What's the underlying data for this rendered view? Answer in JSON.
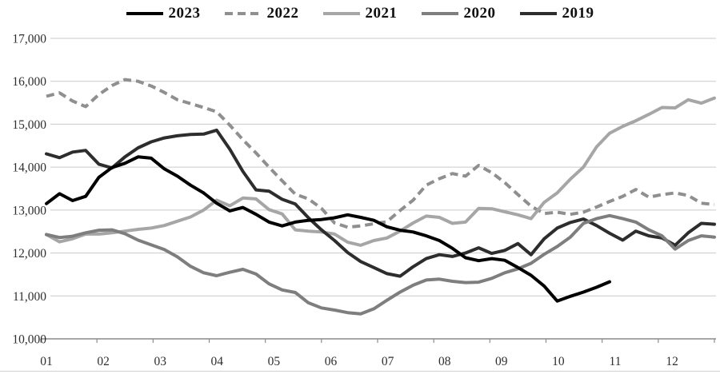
{
  "chart_data": {
    "type": "line",
    "title": "",
    "xlabel": "",
    "ylabel": "",
    "x_unit": "weeks (52 per year)",
    "x_tick_labels": [
      "01",
      "02",
      "03",
      "04",
      "05",
      "06",
      "07",
      "08",
      "09",
      "10",
      "11",
      "12"
    ],
    "y_axis": {
      "min": 10000,
      "max": 17000,
      "step": 1000,
      "tick_labels": [
        "17,000",
        "16,000",
        "15,000",
        "14,000",
        "13,000",
        "12,000",
        "11,000",
        "10,000"
      ]
    },
    "grid": "horizontal",
    "legend_position": "top-center",
    "draw_order": [
      "2022",
      "2021",
      "2019",
      "2020",
      "2023"
    ],
    "series": [
      {
        "name": "2023",
        "color": "#000000",
        "style": "solid",
        "width": 4,
        "values": [
          13150,
          13380,
          13220,
          13320,
          13760,
          13990,
          14090,
          14240,
          14210,
          13960,
          13790,
          13580,
          13400,
          13160,
          12980,
          13060,
          12900,
          12720,
          12630,
          12720,
          12760,
          12780,
          12820,
          12890,
          12830,
          12760,
          12610,
          12530,
          12490,
          12400,
          12290,
          12110,
          11890,
          11820,
          11870,
          11830,
          11660,
          11480,
          11230,
          10880,
          10990,
          11090,
          11200,
          11330
        ]
      },
      {
        "name": "2022",
        "color": "#8f8f8f",
        "style": "dashed",
        "width": 4,
        "values": [
          15650,
          15730,
          15540,
          15410,
          15690,
          15900,
          16040,
          16000,
          15890,
          15740,
          15570,
          15480,
          15390,
          15290,
          14980,
          14640,
          14330,
          14000,
          13680,
          13370,
          13260,
          13040,
          12700,
          12600,
          12630,
          12680,
          12730,
          12990,
          13230,
          13580,
          13730,
          13850,
          13790,
          14040,
          13870,
          13640,
          13360,
          13090,
          12920,
          12950,
          12900,
          12950,
          13070,
          13200,
          13320,
          13480,
          13300,
          13360,
          13400,
          13340,
          13160,
          13130
        ]
      },
      {
        "name": "2021",
        "color": "#a6a6a6",
        "style": "solid",
        "width": 4,
        "values": [
          12430,
          12260,
          12330,
          12440,
          12440,
          12470,
          12510,
          12550,
          12580,
          12640,
          12740,
          12840,
          13000,
          13230,
          13100,
          13280,
          13260,
          13010,
          12910,
          12540,
          12510,
          12490,
          12440,
          12250,
          12180,
          12290,
          12350,
          12510,
          12700,
          12860,
          12830,
          12690,
          12720,
          13040,
          13030,
          12960,
          12890,
          12800,
          13180,
          13400,
          13720,
          14000,
          14470,
          14790,
          14950,
          15080,
          15230,
          15390,
          15380,
          15570,
          15490,
          15610
        ]
      },
      {
        "name": "2020",
        "color": "#7e7e7e",
        "style": "solid",
        "width": 4,
        "values": [
          12430,
          12360,
          12390,
          12470,
          12530,
          12540,
          12450,
          12300,
          12190,
          12080,
          11910,
          11690,
          11540,
          11470,
          11550,
          11620,
          11510,
          11280,
          11140,
          11080,
          10840,
          10720,
          10670,
          10610,
          10580,
          10700,
          10900,
          11090,
          11250,
          11370,
          11390,
          11340,
          11310,
          11320,
          11410,
          11540,
          11630,
          11760,
          11970,
          12150,
          12370,
          12690,
          12800,
          12870,
          12800,
          12720,
          12540,
          12400,
          12090,
          12290,
          12400,
          12370
        ]
      },
      {
        "name": "2019",
        "color": "#2d2d2d",
        "style": "solid",
        "width": 4,
        "values": [
          14310,
          14220,
          14350,
          14390,
          14070,
          13980,
          14240,
          14450,
          14590,
          14680,
          14730,
          14760,
          14770,
          14860,
          14420,
          13900,
          13470,
          13440,
          13250,
          13140,
          12820,
          12540,
          12290,
          12010,
          11800,
          11660,
          11520,
          11460,
          11680,
          11870,
          11960,
          11920,
          12000,
          12120,
          11990,
          12060,
          12220,
          11960,
          12330,
          12580,
          12710,
          12790,
          12640,
          12460,
          12300,
          12510,
          12400,
          12350,
          12180,
          12470,
          12690,
          12670
        ]
      }
    ]
  }
}
